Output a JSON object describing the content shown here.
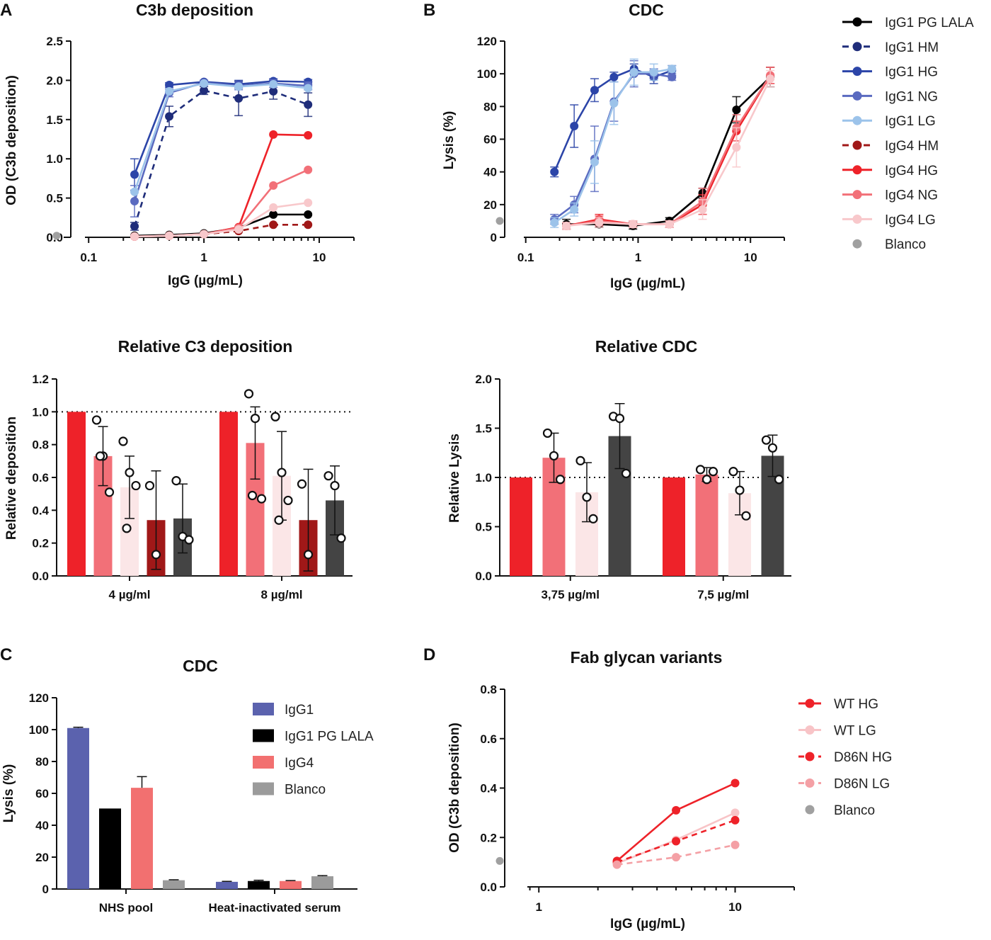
{
  "panel_letters": [
    "A",
    "B",
    "C",
    "D"
  ],
  "chart_data": [
    {
      "id": "a_top",
      "type": "line",
      "title": "C3b deposition",
      "xlabel": "IgG (µg/mL)",
      "ylabel": "OD (C3b deposition)",
      "xscale": "log",
      "xlim": [
        0.07,
        20
      ],
      "ylim": [
        0,
        2.5
      ],
      "xticks": [
        0.1,
        1,
        10
      ],
      "xtick_labels": [
        "0.1",
        "1",
        "10"
      ],
      "yticks": [
        0,
        0.5,
        1.0,
        1.5,
        2.0,
        2.5
      ],
      "ytick_labels": [
        "0.0",
        "0.5",
        "1.0",
        "1.5",
        "2.0",
        "2.5"
      ],
      "blanco": 0.02,
      "series": [
        {
          "name": "IgG1 PG LALA",
          "x": [
            0.25,
            0.5,
            1,
            2,
            4,
            8
          ],
          "values": [
            0.02,
            0.03,
            0.05,
            0.12,
            0.29,
            0.29
          ]
        },
        {
          "name": "IgG1 HM",
          "x": [
            0.25,
            0.5,
            1,
            2,
            4,
            8
          ],
          "values": [
            0.14,
            1.54,
            1.87,
            1.77,
            1.86,
            1.69
          ],
          "errors": [
            0.05,
            0.13,
            0.05,
            0.22,
            0.1,
            0.15
          ]
        },
        {
          "name": "IgG1 HG",
          "x": [
            0.25,
            0.5,
            1,
            2,
            4,
            8
          ],
          "values": [
            0.8,
            1.94,
            1.98,
            1.95,
            1.99,
            1.98
          ],
          "errors": [
            0.2,
            0.03,
            0.02,
            0.05,
            0.03,
            0.03
          ]
        },
        {
          "name": "IgG1 NG",
          "x": [
            0.25,
            0.5,
            1,
            2,
            4,
            8
          ],
          "values": [
            0.46,
            1.84,
            1.97,
            1.93,
            1.96,
            1.93
          ],
          "errors": [
            0.2,
            0.05,
            0.03,
            0.05,
            0.05,
            0.05
          ]
        },
        {
          "name": "IgG1 LG",
          "x": [
            0.25,
            0.5,
            1,
            2,
            4,
            8
          ],
          "values": [
            0.58,
            1.86,
            1.96,
            1.92,
            1.95,
            1.9
          ]
        },
        {
          "name": "IgG4 HM",
          "x": [
            0.25,
            0.5,
            1,
            2,
            4,
            8
          ],
          "values": [
            0.01,
            0.02,
            0.04,
            0.08,
            0.16,
            0.16
          ]
        },
        {
          "name": "IgG4 HG",
          "x": [
            0.25,
            0.5,
            1,
            2,
            4,
            8
          ],
          "values": [
            0.01,
            0.02,
            0.04,
            0.13,
            1.31,
            1.3
          ]
        },
        {
          "name": "IgG4 NG",
          "x": [
            0.25,
            0.5,
            1,
            2,
            4,
            8
          ],
          "values": [
            0.01,
            0.02,
            0.04,
            0.12,
            0.66,
            0.86
          ]
        },
        {
          "name": "IgG4 LG",
          "x": [
            0.25,
            0.5,
            1,
            2,
            4,
            8
          ],
          "values": [
            0.01,
            0.02,
            0.04,
            0.1,
            0.38,
            0.44
          ]
        }
      ]
    },
    {
      "id": "b_top",
      "type": "line",
      "title": "CDC",
      "xlabel": "IgG (µg/mL)",
      "ylabel": "Lysis  (%)",
      "xscale": "log",
      "xlim": [
        0.065,
        20
      ],
      "ylim": [
        0,
        120
      ],
      "xticks": [
        0.1,
        1,
        10
      ],
      "xtick_labels": [
        "0.1",
        "1",
        "10"
      ],
      "yticks": [
        0,
        20,
        40,
        60,
        80,
        100,
        120
      ],
      "ytick_labels": [
        "0",
        "20",
        "40",
        "60",
        "80",
        "100",
        "120"
      ],
      "blanco": 10,
      "series": [
        {
          "name": "IgG1 PG LALA",
          "x": [
            0.23,
            0.45,
            0.9,
            1.9,
            3.75,
            7.5,
            15
          ],
          "values": [
            8,
            8,
            7,
            10,
            27,
            78,
            98
          ],
          "errors": [
            3,
            2,
            2,
            2,
            3,
            8,
            6
          ]
        },
        {
          "name": "IgG1 HM",
          "x": [],
          "values": []
        },
        {
          "name": "IgG1 HG",
          "x": [
            0.18,
            0.27,
            0.41,
            0.61,
            0.92,
            1.38,
            2.0
          ],
          "values": [
            40,
            68,
            90,
            98,
            103,
            98,
            102
          ],
          "errors": [
            3,
            13,
            7,
            3,
            3,
            4,
            3
          ]
        },
        {
          "name": "IgG1 NG",
          "x": [
            0.18,
            0.27,
            0.41,
            0.61,
            0.92,
            1.38,
            2.0
          ],
          "values": [
            11,
            20,
            48,
            83,
            100,
            100,
            98
          ],
          "errors": [
            3,
            5,
            20,
            12,
            8,
            3,
            2
          ]
        },
        {
          "name": "IgG1 LG",
          "x": [
            0.18,
            0.27,
            0.41,
            0.61,
            0.92,
            1.38,
            2.0
          ],
          "values": [
            9,
            17,
            46,
            82,
            101,
            101,
            103
          ],
          "errors": [
            3,
            4,
            13,
            13,
            8,
            5,
            2
          ]
        },
        {
          "name": "IgG4 HM",
          "x": [],
          "values": []
        },
        {
          "name": "IgG4 HG",
          "x": [
            0.23,
            0.45,
            0.9,
            1.9,
            3.75,
            7.5,
            15
          ],
          "values": [
            7,
            11,
            8,
            8,
            20,
            65,
            99
          ],
          "errors": [
            2,
            3,
            2,
            2,
            6,
            6,
            5
          ]
        },
        {
          "name": "IgG4 NG",
          "x": [
            0.23,
            0.45,
            0.9,
            1.9,
            3.75,
            7.5,
            15
          ],
          "values": [
            7,
            10,
            8,
            8,
            22,
            67,
            99
          ],
          "errors": [
            2,
            3,
            2,
            2,
            8,
            8,
            5
          ]
        },
        {
          "name": "IgG4 LG",
          "x": [
            0.23,
            0.45,
            0.9,
            1.9,
            3.75,
            7.5,
            15
          ],
          "values": [
            7,
            9,
            8,
            8,
            17,
            55,
            97
          ],
          "errors": [
            2,
            3,
            2,
            2,
            6,
            12,
            5
          ]
        }
      ]
    },
    {
      "id": "a_bottom",
      "type": "bar",
      "title": "Relative C3 deposition",
      "ylabel": "Relative deposition",
      "categories": [
        "4 µg/ml",
        "8 µg/ml"
      ],
      "ylim": [
        0,
        1.2
      ],
      "yticks": [
        0,
        0.2,
        0.4,
        0.6,
        0.8,
        1.0,
        1.2
      ],
      "ytick_labels": [
        "0.0",
        "0.2",
        "0.4",
        "0.6",
        "0.8",
        "1.0",
        "1.2"
      ],
      "reference_line": 1.0,
      "series": [
        {
          "name": "IgG4 HG",
          "values": [
            1.0,
            1.0
          ],
          "errors": [
            0,
            0
          ],
          "points": [
            [],
            []
          ]
        },
        {
          "name": "IgG4 NG",
          "values": [
            0.73,
            0.81
          ],
          "errors": [
            0.18,
            0.22
          ],
          "points": [
            [
              0.95,
              0.73,
              0.51,
              0.73
            ],
            [
              1.11,
              0.96,
              0.47,
              0.49
            ]
          ]
        },
        {
          "name": "IgG4 LG",
          "values": [
            0.54,
            0.61
          ],
          "errors": [
            0.19,
            0.27
          ],
          "points": [
            [
              0.82,
              0.63,
              0.55,
              0.29
            ],
            [
              0.97,
              0.63,
              0.46,
              0.34
            ]
          ]
        },
        {
          "name": "IgG4 HM",
          "values": [
            0.34,
            0.34
          ],
          "errors": [
            0.3,
            0.31
          ],
          "points": [
            [
              0.55,
              0.13
            ],
            [
              0.56,
              0.13
            ]
          ]
        },
        {
          "name": "IgG1 PG LALA",
          "values": [
            0.35,
            0.46
          ],
          "errors": [
            0.21,
            0.21
          ],
          "points": [
            [
              0.58,
              0.24,
              0.22
            ],
            [
              0.61,
              0.55,
              0.23
            ]
          ]
        }
      ]
    },
    {
      "id": "b_bottom",
      "type": "bar",
      "title": "Relative CDC",
      "ylabel": "Relative Lysis",
      "categories": [
        "3,75 µg/ml",
        "7,5 µg/ml"
      ],
      "ylim": [
        0,
        2.0
      ],
      "yticks": [
        0,
        0.5,
        1.0,
        1.5,
        2.0
      ],
      "ytick_labels": [
        "0.0",
        "0.5",
        "1.0",
        "1.5",
        "2.0"
      ],
      "reference_line": 1.0,
      "series": [
        {
          "name": "IgG4 HG",
          "values": [
            1.0,
            1.0
          ],
          "errors": [
            0,
            0
          ],
          "points": [
            [],
            []
          ]
        },
        {
          "name": "IgG4 NG",
          "values": [
            1.2,
            1.03
          ],
          "errors": [
            0.25,
            0.07
          ],
          "points": [
            [
              1.45,
              1.22,
              0.98
            ],
            [
              1.08,
              0.98,
              1.06
            ]
          ]
        },
        {
          "name": "IgG4 LG",
          "values": [
            0.85,
            0.84
          ],
          "errors": [
            0.3,
            0.22
          ],
          "points": [
            [
              1.17,
              0.8,
              0.58
            ],
            [
              1.06,
              0.87,
              0.61
            ]
          ]
        },
        {
          "name": "IgG1 PG LALA",
          "values": [
            1.42,
            1.22
          ],
          "errors": [
            0.33,
            0.21
          ],
          "points": [
            [
              1.62,
              1.6,
              1.04
            ],
            [
              1.38,
              1.3,
              0.98
            ]
          ]
        }
      ]
    },
    {
      "id": "c",
      "type": "bar",
      "title": "CDC",
      "ylabel": "Lysis (%)",
      "categories": [
        "NHS pool",
        "Heat-inactivated serum"
      ],
      "ylim": [
        0,
        120
      ],
      "yticks": [
        0,
        20,
        40,
        60,
        80,
        100,
        120
      ],
      "ytick_labels": [
        "0",
        "20",
        "40",
        "60",
        "80",
        "100",
        "120"
      ],
      "series": [
        {
          "name": "IgG1",
          "values": [
            101,
            4.5
          ],
          "errors": [
            0.5,
            0.3
          ]
        },
        {
          "name": "IgG1 PG LALA",
          "values": [
            50.5,
            5
          ],
          "errors": [
            0,
            0.5
          ]
        },
        {
          "name": "IgG4",
          "values": [
            63.5,
            5
          ],
          "errors": [
            7,
            0.3
          ]
        },
        {
          "name": "Blanco",
          "values": [
            5.5,
            8
          ],
          "errors": [
            0.3,
            0.4
          ]
        }
      ]
    },
    {
      "id": "d",
      "type": "line",
      "title": "Fab glycan variants",
      "xlabel": "IgG (µg/mL)",
      "ylabel": "OD (C3b deposition)",
      "xscale": "log",
      "xlim": [
        0.67,
        20
      ],
      "ylim": [
        0,
        0.8
      ],
      "xticks": [
        1,
        10
      ],
      "xtick_labels": [
        "1",
        "10"
      ],
      "yticks": [
        0,
        0.2,
        0.4,
        0.6,
        0.8
      ],
      "ytick_labels": [
        "0.0",
        "0.2",
        "0.4",
        "0.6",
        "0.8"
      ],
      "blanco": 0.105,
      "series": [
        {
          "name": "WT HG",
          "x": [
            2.5,
            5,
            10
          ],
          "values": [
            0.105,
            0.31,
            0.42
          ]
        },
        {
          "name": "WT LG",
          "x": [
            2.5,
            5,
            10
          ],
          "values": [
            0.095,
            0.19,
            0.3
          ]
        },
        {
          "name": "D86N HG",
          "x": [
            2.5,
            5,
            10
          ],
          "values": [
            0.1,
            0.185,
            0.27
          ]
        },
        {
          "name": "D86N LG",
          "x": [
            2.5,
            5,
            10
          ],
          "values": [
            0.09,
            0.12,
            0.17
          ]
        }
      ]
    }
  ],
  "legend_b": [
    "IgG1 PG LALA",
    "IgG1 HM",
    "IgG1 HG",
    "IgG1 NG",
    "IgG1 LG",
    "IgG4 HM",
    "IgG4 HG",
    "IgG4 NG",
    "IgG4 LG",
    "Blanco"
  ],
  "legend_c": [
    "IgG1",
    "IgG1 PG LALA",
    "IgG4",
    "Blanco"
  ],
  "legend_d": [
    "WT HG",
    "WT LG",
    "D86N HG",
    "D86N LG",
    "Blanco"
  ],
  "colors": {
    "IgG1 PG LALA": "#000000",
    "IgG1 HM": "#1f2d7a",
    "IgG1 HG": "#2c45a8",
    "IgG1 NG": "#5a6ac0",
    "IgG1 LG": "#9cc3ea",
    "IgG4 HM": "#a01818",
    "IgG4 HG": "#ee2229",
    "IgG4 NG": "#f27078",
    "IgG4 LG": "#f8c8cb",
    "Blanco": "#a0a0a0",
    "IgG1": "#5b62ae",
    "IgG4": "#f27070",
    "WT HG": "#ee2229",
    "WT LG": "#f8c4c7",
    "D86N HG": "#ee2229",
    "D86N LG": "#f4a0a5",
    "bar IgG4 LG": "#fbe6e7",
    "bar IgG1 PG LALA": "#444444",
    "bar Blanco": "#9b9b9b"
  }
}
